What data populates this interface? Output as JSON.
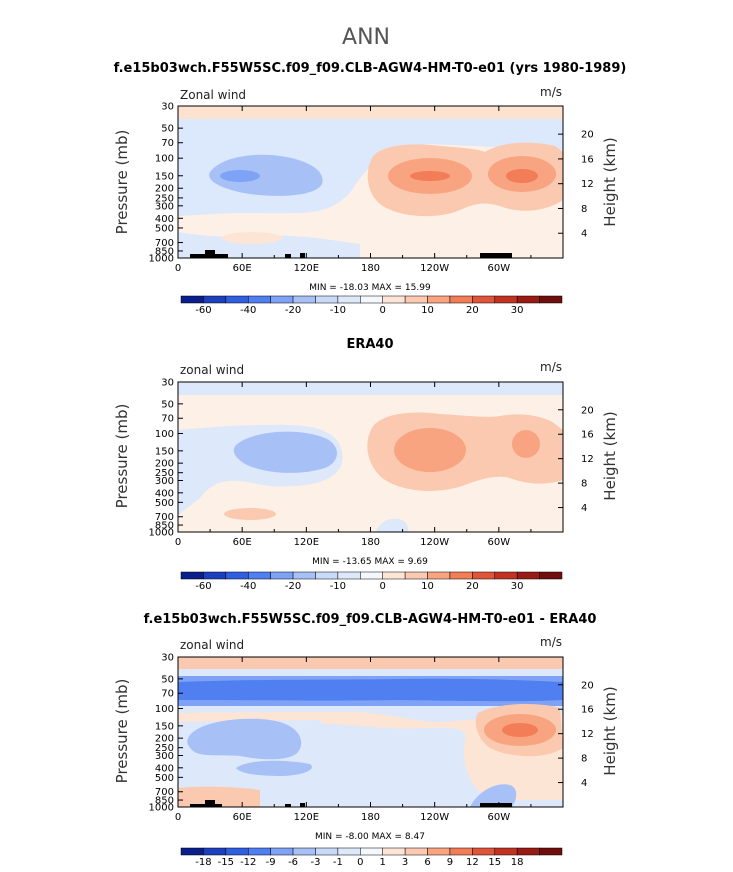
{
  "figure_title": "ANN",
  "chart_data": [
    {
      "type": "contour",
      "title": "f.e15b03wch.F55W5SC.f09_f09.CLB-AGW4-HM-T0-e01 (yrs 1980-1989)",
      "field_label": "Zonal wind",
      "units": "m/s",
      "ylabel_left": "Pressure (mb)",
      "ylabel_right": "Height (km)",
      "x_ticks": [
        "0",
        "60E",
        "120E",
        "180",
        "120W",
        "60W"
      ],
      "p_ticks": [
        "30",
        "50",
        "70",
        "100",
        "150",
        "200",
        "250",
        "300",
        "400",
        "500",
        "700",
        "850",
        "1000"
      ],
      "h_ticks": [
        "20",
        "16",
        "12",
        "8",
        "4"
      ],
      "min_max_text": "MIN = -18.03   MAX =  15.99",
      "min": -18.03,
      "max": 15.99,
      "colorbar_levels": [
        -70,
        -60,
        -50,
        -40,
        -30,
        -20,
        -15,
        -10,
        -5,
        0,
        5,
        10,
        15,
        20,
        25,
        30,
        35
      ],
      "colorbar_labels": [
        "-60",
        "-40",
        "-20",
        "-10",
        "0",
        "10",
        "20",
        "30"
      ],
      "colorbar_colors": [
        "#0a1e8c",
        "#1c3fbd",
        "#2f5ee0",
        "#4f7ff0",
        "#7ea2f5",
        "#a7c1f7",
        "#c8daf9",
        "#dde8fb",
        "#f4f7fc",
        "#fde5d5",
        "#fbc9b0",
        "#f8a481",
        "#f27d57",
        "#e0543a",
        "#c13222",
        "#9a1b14",
        "#6f0e0b"
      ]
    },
    {
      "type": "contour",
      "title": "ERA40",
      "field_label": "zonal wind",
      "units": "m/s",
      "ylabel_left": "Pressure (mb)",
      "ylabel_right": "Height (km)",
      "x_ticks": [
        "0",
        "60E",
        "120E",
        "180",
        "120W",
        "60W"
      ],
      "p_ticks": [
        "30",
        "50",
        "70",
        "100",
        "150",
        "200",
        "250",
        "300",
        "400",
        "500",
        "700",
        "850",
        "1000"
      ],
      "h_ticks": [
        "20",
        "16",
        "12",
        "8",
        "4"
      ],
      "min_max_text": "MIN = -13.65   MAX =   9.69",
      "min": -13.65,
      "max": 9.69,
      "colorbar_levels": [
        -70,
        -60,
        -50,
        -40,
        -30,
        -20,
        -15,
        -10,
        -5,
        0,
        5,
        10,
        15,
        20,
        25,
        30,
        35
      ],
      "colorbar_labels": [
        "-60",
        "-40",
        "-20",
        "-10",
        "0",
        "10",
        "20",
        "30"
      ],
      "colorbar_colors": [
        "#0a1e8c",
        "#1c3fbd",
        "#2f5ee0",
        "#4f7ff0",
        "#7ea2f5",
        "#a7c1f7",
        "#c8daf9",
        "#dde8fb",
        "#f4f7fc",
        "#fde5d5",
        "#fbc9b0",
        "#f8a481",
        "#f27d57",
        "#e0543a",
        "#c13222",
        "#9a1b14",
        "#6f0e0b"
      ]
    },
    {
      "type": "contour",
      "title": "f.e15b03wch.F55W5SC.f09_f09.CLB-AGW4-HM-T0-e01 - ERA40",
      "field_label": "zonal wind",
      "units": "m/s",
      "ylabel_left": "Pressure (mb)",
      "ylabel_right": "Height (km)",
      "x_ticks": [
        "0",
        "60E",
        "120E",
        "180",
        "120W",
        "60W"
      ],
      "p_ticks": [
        "30",
        "50",
        "70",
        "100",
        "150",
        "200",
        "250",
        "300",
        "400",
        "500",
        "700",
        "850",
        "1000"
      ],
      "h_ticks": [
        "20",
        "16",
        "12",
        "8",
        "4"
      ],
      "min_max_text": "MIN =  -8.00   MAX =   8.47",
      "min": -8.0,
      "max": 8.47,
      "colorbar_levels": [
        -21,
        -18,
        -15,
        -12,
        -9,
        -6,
        -3,
        -1,
        0,
        1,
        3,
        6,
        9,
        12,
        15,
        18,
        21
      ],
      "colorbar_labels": [
        "-18",
        "-15",
        "-12",
        "-9",
        "-6",
        "-3",
        "-1",
        "0",
        "1",
        "3",
        "6",
        "9",
        "12",
        "15",
        "18"
      ],
      "colorbar_colors": [
        "#0a1e8c",
        "#1c3fbd",
        "#2f5ee0",
        "#4f7ff0",
        "#7ea2f5",
        "#a7c1f7",
        "#c8daf9",
        "#dde8fb",
        "#f4f7fc",
        "#fde5d5",
        "#fbc9b0",
        "#f8a481",
        "#f27d57",
        "#e0543a",
        "#c13222",
        "#9a1b14",
        "#6f0e0b"
      ]
    }
  ]
}
